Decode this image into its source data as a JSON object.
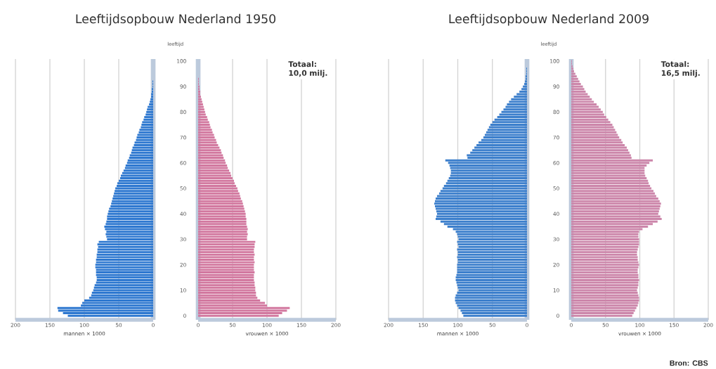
{
  "chart_data": [
    {
      "type": "bar",
      "orientation": "horizontal",
      "title": "Leeftijdsopbouw Nederland 1950",
      "xlabel": "mannen × 1000",
      "color": "#2e78d0",
      "grid": "x",
      "tick_labels": "x",
      "xlim": [
        200,
        0
      ],
      "xticks": [
        200,
        150,
        100,
        50,
        0
      ],
      "categories": [
        "100",
        null,
        null,
        null,
        null,
        null,
        null,
        null,
        null,
        null,
        "90",
        null,
        null,
        null,
        null,
        null,
        null,
        null,
        null,
        null,
        "80",
        null,
        null,
        null,
        null,
        null,
        null,
        null,
        null,
        null,
        "70",
        null,
        null,
        null,
        null,
        null,
        null,
        null,
        null,
        null,
        "60",
        null,
        null,
        null,
        null,
        null,
        null,
        null,
        null,
        null,
        "50",
        null,
        null,
        null,
        null,
        null,
        null,
        null,
        null,
        null,
        "40",
        null,
        null,
        null,
        null,
        null,
        null,
        null,
        null,
        null,
        "30",
        null,
        null,
        null,
        null,
        null,
        null,
        null,
        null,
        null,
        "20",
        null,
        null,
        null,
        null,
        null,
        null,
        null,
        null,
        null,
        "10",
        null,
        null,
        null,
        null,
        null,
        null,
        null,
        null,
        null,
        "0"
      ],
      "values": [
        0,
        0,
        0,
        0,
        0,
        0,
        0,
        0,
        1,
        1,
        1,
        2,
        2,
        3,
        3,
        4,
        5,
        6,
        8,
        9,
        10,
        11,
        13,
        14,
        16,
        17,
        18,
        20,
        21,
        23,
        24,
        25,
        27,
        28,
        30,
        31,
        32,
        34,
        35,
        37,
        38,
        40,
        41,
        43,
        45,
        47,
        48,
        50,
        52,
        53,
        55,
        56,
        57,
        58,
        59,
        60,
        61,
        62,
        64,
        65,
        66,
        67,
        67,
        68,
        69,
        71,
        70,
        68,
        69,
        68,
        67,
        79,
        81,
        80,
        81,
        81,
        82,
        82,
        83,
        83,
        84,
        84,
        83,
        83,
        83,
        82,
        82,
        83,
        85,
        86,
        87,
        89,
        90,
        93,
        100,
        103,
        105,
        139,
        138,
        131,
        124
      ]
    },
    {
      "type": "bar",
      "orientation": "horizontal",
      "xlabel": "vrouwen × 1000",
      "ylabel": "leeftijd",
      "color": "#d2789f",
      "grid": "x",
      "xlim": [
        0,
        200
      ],
      "xticks": [
        0,
        50,
        100,
        150,
        200
      ],
      "annotations": [
        "**Totaal: 10,0 milj.**"
      ],
      "categories": [
        "100",
        null,
        null,
        null,
        null,
        null,
        null,
        null,
        null,
        null,
        "90",
        null,
        null,
        null,
        null,
        null,
        null,
        null,
        null,
        null,
        "80",
        null,
        null,
        null,
        null,
        null,
        null,
        null,
        null,
        null,
        "70",
        null,
        null,
        null,
        null,
        null,
        null,
        null,
        null,
        null,
        "60",
        null,
        null,
        null,
        null,
        null,
        null,
        null,
        null,
        null,
        "50",
        null,
        null,
        null,
        null,
        null,
        null,
        null,
        null,
        null,
        "40",
        null,
        null,
        null,
        null,
        null,
        null,
        null,
        null,
        null,
        "30",
        null,
        null,
        null,
        null,
        null,
        null,
        null,
        null,
        null,
        "20",
        null,
        null,
        null,
        null,
        null,
        null,
        null,
        null,
        null,
        "10",
        null,
        null,
        null,
        null,
        null,
        null,
        null,
        null,
        null,
        "0"
      ],
      "values": [
        0,
        0,
        0,
        0,
        0,
        0,
        0,
        1,
        1,
        1,
        2,
        2,
        3,
        3,
        4,
        5,
        6,
        7,
        8,
        9,
        10,
        11,
        13,
        14,
        16,
        17,
        18,
        20,
        21,
        23,
        24,
        26,
        27,
        29,
        31,
        33,
        34,
        36,
        37,
        39,
        40,
        42,
        43,
        45,
        47,
        48,
        50,
        52,
        53,
        55,
        57,
        58,
        60,
        61,
        62,
        64,
        65,
        66,
        67,
        68,
        69,
        69,
        70,
        70,
        70,
        71,
        72,
        71,
        72,
        71,
        71,
        83,
        82,
        82,
        81,
        81,
        82,
        81,
        81,
        82,
        81,
        81,
        81,
        82,
        81,
        81,
        81,
        82,
        82,
        83,
        83,
        84,
        84,
        86,
        90,
        97,
        100,
        133,
        129,
        122,
        117
      ]
    },
    {
      "type": "bar",
      "orientation": "horizontal",
      "title": "Leeftijdsopbouw Nederland 2009",
      "xlabel": "mannen × 1000",
      "color": "#3c7fcc",
      "grid": "x",
      "tick_labels": "x",
      "xlim": [
        200,
        0
      ],
      "xticks": [
        200,
        150,
        100,
        50,
        0
      ],
      "categories": [
        "100",
        null,
        null,
        null,
        null,
        null,
        null,
        null,
        null,
        null,
        "90",
        null,
        null,
        null,
        null,
        null,
        null,
        null,
        null,
        null,
        "80",
        null,
        null,
        null,
        null,
        null,
        null,
        null,
        null,
        null,
        "70",
        null,
        null,
        null,
        null,
        null,
        null,
        null,
        null,
        null,
        "60",
        null,
        null,
        null,
        null,
        null,
        null,
        null,
        null,
        null,
        "50",
        null,
        null,
        null,
        null,
        null,
        null,
        null,
        null,
        null,
        "40",
        null,
        null,
        null,
        null,
        null,
        null,
        null,
        null,
        null,
        "30",
        null,
        null,
        null,
        null,
        null,
        null,
        null,
        null,
        null,
        "20",
        null,
        null,
        null,
        null,
        null,
        null,
        null,
        null,
        null,
        "10",
        null,
        null,
        null,
        null,
        null,
        null,
        null,
        null,
        null,
        "0"
      ],
      "values": [
        0,
        0,
        0,
        1,
        1,
        1,
        2,
        2,
        3,
        4,
        6,
        8,
        11,
        15,
        19,
        23,
        26,
        29,
        31,
        34,
        37,
        40,
        43,
        47,
        50,
        53,
        55,
        57,
        59,
        61,
        63,
        66,
        70,
        73,
        76,
        79,
        82,
        87,
        86,
        118,
        114,
        112,
        111,
        110,
        110,
        111,
        113,
        115,
        117,
        120,
        122,
        125,
        127,
        130,
        132,
        133,
        134,
        133,
        132,
        131,
        130,
        131,
        132,
        125,
        120,
        115,
        107,
        103,
        101,
        100,
        99,
        101,
        100,
        99,
        101,
        100,
        100,
        101,
        100,
        100,
        101,
        101,
        101,
        101,
        102,
        103,
        103,
        102,
        101,
        100,
        99,
        101,
        103,
        104,
        104,
        103,
        101,
        99,
        96,
        94,
        92
      ]
    },
    {
      "type": "bar",
      "orientation": "horizontal",
      "xlabel": "vrouwen × 1000",
      "ylabel": "leeftijd",
      "color": "#cc86aa",
      "grid": "x",
      "xlim": [
        0,
        200
      ],
      "xticks": [
        0,
        50,
        100,
        150,
        200
      ],
      "annotations": [
        "**Totaal: 16,5 milj.**",
        "**Bron: CBS**"
      ],
      "categories": [
        "100",
        null,
        null,
        null,
        null,
        null,
        null,
        null,
        null,
        null,
        "90",
        null,
        null,
        null,
        null,
        null,
        null,
        null,
        null,
        null,
        "80",
        null,
        null,
        null,
        null,
        null,
        null,
        null,
        null,
        null,
        "70",
        null,
        null,
        null,
        null,
        null,
        null,
        null,
        null,
        null,
        "60",
        null,
        null,
        null,
        null,
        null,
        null,
        null,
        null,
        null,
        "50",
        null,
        null,
        null,
        null,
        null,
        null,
        null,
        null,
        null,
        "40",
        null,
        null,
        null,
        null,
        null,
        null,
        null,
        null,
        null,
        "30",
        null,
        null,
        null,
        null,
        null,
        null,
        null,
        null,
        null,
        "20",
        null,
        null,
        null,
        null,
        null,
        null,
        null,
        null,
        null,
        "10",
        null,
        null,
        null,
        null,
        null,
        null,
        null,
        null,
        null,
        "0"
      ],
      "values": [
        1,
        1,
        2,
        3,
        4,
        6,
        8,
        10,
        12,
        14,
        17,
        19,
        21,
        24,
        27,
        30,
        33,
        37,
        40,
        43,
        46,
        48,
        51,
        54,
        57,
        60,
        62,
        64,
        66,
        68,
        70,
        73,
        75,
        78,
        81,
        83,
        85,
        87,
        88,
        119,
        114,
        110,
        107,
        107,
        107,
        108,
        110,
        112,
        113,
        115,
        117,
        120,
        122,
        124,
        127,
        129,
        131,
        130,
        129,
        128,
        127,
        130,
        132,
        126,
        119,
        112,
        104,
        99,
        98,
        98,
        99,
        99,
        99,
        98,
        97,
        96,
        96,
        97,
        97,
        98,
        99,
        98,
        97,
        97,
        98,
        98,
        99,
        98,
        98,
        97,
        96,
        97,
        98,
        99,
        99,
        98,
        97,
        95,
        93,
        91,
        89
      ]
    }
  ]
}
